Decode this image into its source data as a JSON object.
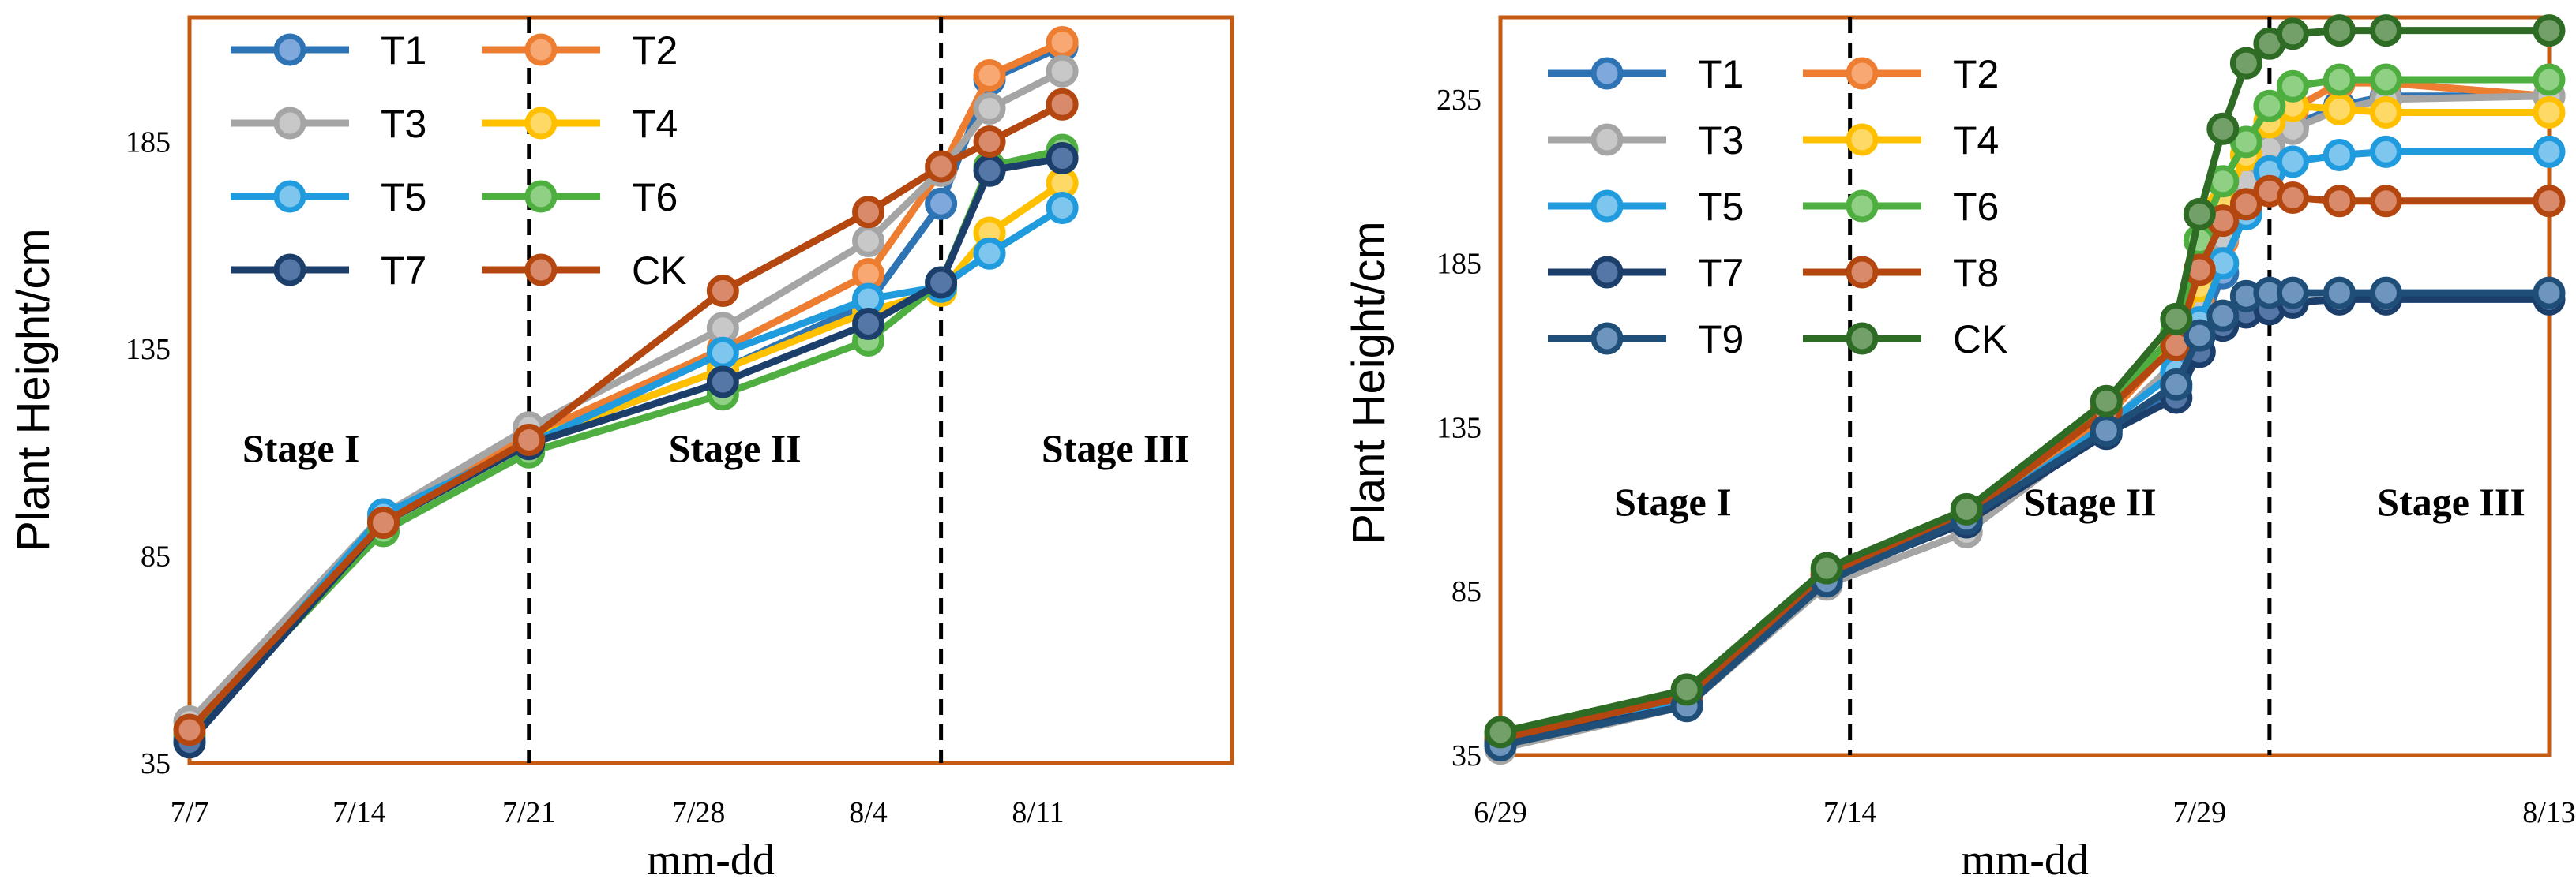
{
  "chart_data": [
    {
      "type": "line",
      "ylabel": "Plant Height/cm",
      "xlabel": "mm-dd",
      "yticks": [
        35,
        85,
        135,
        185
      ],
      "ylim": [
        35,
        215
      ],
      "xlim": [
        0,
        43
      ],
      "xticks": [
        {
          "value": 0,
          "label": "7/7"
        },
        {
          "value": 7,
          "label": "7/14"
        },
        {
          "value": 14,
          "label": "7/21"
        },
        {
          "value": 21,
          "label": "7/28"
        },
        {
          "value": 28,
          "label": "8/4"
        },
        {
          "value": 35,
          "label": "8/11"
        }
      ],
      "dividers": [
        14,
        31
      ],
      "stages": [
        {
          "label": "Stage I",
          "x": 4.6
        },
        {
          "label": "Stage II",
          "x": 22.5
        },
        {
          "label": "Stage III",
          "x": 38.2
        }
      ],
      "x": [
        0,
        8,
        14,
        22,
        28,
        31,
        33,
        36
      ],
      "series": [
        {
          "name": "T1",
          "color": "#2E74B5",
          "fill": "#7FA9DC",
          "values": [
            40,
            94,
            113,
            130,
            146,
            170,
            200,
            208
          ]
        },
        {
          "name": "T2",
          "color": "#ED7D31",
          "fill": "#F7A873",
          "values": [
            43,
            94,
            114,
            135,
            153,
            178,
            201,
            209
          ]
        },
        {
          "name": "T3",
          "color": "#A5A5A5",
          "fill": "#C8C8C8",
          "values": [
            45,
            95,
            116,
            140,
            161,
            178,
            193,
            202
          ]
        },
        {
          "name": "T4",
          "color": "#FFC000",
          "fill": "#FFD966",
          "values": [
            41,
            93,
            113,
            130,
            144,
            149,
            163,
            175
          ]
        },
        {
          "name": "T5",
          "color": "#1F9BDE",
          "fill": "#7FC6EE",
          "values": [
            41,
            95,
            112,
            134,
            147,
            150,
            158,
            169
          ]
        },
        {
          "name": "T6",
          "color": "#4EAF40",
          "fill": "#8FD084",
          "values": [
            42,
            91,
            110,
            124,
            137,
            151,
            179,
            183
          ]
        },
        {
          "name": "T7",
          "color": "#1B3E6B",
          "fill": "#5577A8",
          "values": [
            40,
            93,
            112,
            127,
            141,
            151,
            178,
            181
          ]
        },
        {
          "name": "CK",
          "color": "#B4470F",
          "fill": "#D98A6A",
          "values": [
            43,
            93,
            113,
            149,
            168,
            179,
            185,
            194
          ]
        }
      ]
    },
    {
      "type": "line",
      "ylabel": "Plant Height/cm",
      "xlabel": "mm-dd",
      "yticks": [
        35,
        85,
        135,
        185,
        235
      ],
      "ylim": [
        35,
        260
      ],
      "xlim": [
        0,
        45
      ],
      "xticks": [
        {
          "value": 0,
          "label": "6/29"
        },
        {
          "value": 15,
          "label": "7/14"
        },
        {
          "value": 30,
          "label": "7/29"
        },
        {
          "value": 45,
          "label": "8/13"
        }
      ],
      "dividers": [
        15,
        33
      ],
      "stages": [
        {
          "label": "Stage I",
          "x": 7.4
        },
        {
          "label": "Stage II",
          "x": 25.3
        },
        {
          "label": "Stage III",
          "x": 40.8
        }
      ],
      "x": [
        0,
        8,
        14,
        20,
        26,
        29,
        30,
        31,
        32,
        33,
        34,
        36,
        38,
        45
      ],
      "series": [
        {
          "name": "T1",
          "color": "#2E74B5",
          "fill": "#7FA9DC",
          "values": [
            38,
            51,
            88,
            107,
            134,
            147,
            163,
            182,
            202,
            218,
            227,
            233,
            236,
            236
          ]
        },
        {
          "name": "T2",
          "color": "#ED7D31",
          "fill": "#F7A873",
          "values": [
            39,
            52,
            89,
            106,
            138,
            161,
            172,
            192,
            208,
            224,
            232,
            240,
            240,
            236
          ]
        },
        {
          "name": "T3",
          "color": "#A5A5A5",
          "fill": "#C8C8C8",
          "values": [
            37,
            50,
            87,
            103,
            135,
            155,
            170,
            193,
            210,
            220,
            226,
            232,
            235,
            236
          ]
        },
        {
          "name": "T4",
          "color": "#FFC000",
          "fill": "#FFD966",
          "values": [
            41,
            53,
            90,
            108,
            140,
            163,
            178,
            203,
            218,
            228,
            233,
            232,
            231,
            231
          ]
        },
        {
          "name": "T5",
          "color": "#1F9BDE",
          "fill": "#7FC6EE",
          "values": [
            39,
            52,
            89,
            106,
            136,
            152,
            167,
            185,
            200,
            213,
            216,
            218,
            219,
            219
          ]
        },
        {
          "name": "T6",
          "color": "#4EAF40",
          "fill": "#8FD084",
          "values": [
            41,
            54,
            91,
            109,
            141,
            164,
            192,
            210,
            222,
            233,
            239,
            241,
            241,
            241
          ]
        },
        {
          "name": "T7",
          "color": "#1B3E6B",
          "fill": "#5577A8",
          "values": [
            39,
            50,
            89,
            106,
            133,
            144,
            158,
            166,
            170,
            171,
            173,
            174,
            174,
            174
          ]
        },
        {
          "name": "T8",
          "color": "#B4470F",
          "fill": "#D98A6A",
          "values": [
            40,
            53,
            90,
            108,
            140,
            160,
            183,
            198,
            203,
            207,
            205,
            204,
            204,
            204
          ]
        },
        {
          "name": "T9",
          "color": "#1F4E79",
          "fill": "#6E95BD",
          "values": [
            38,
            50,
            88,
            107,
            134,
            148,
            163,
            169,
            175,
            176,
            176,
            176,
            176,
            176
          ]
        },
        {
          "name": "CK",
          "color": "#2E6B24",
          "fill": "#73A068",
          "values": [
            42,
            55,
            92,
            110,
            143,
            168,
            200,
            226,
            246,
            252,
            255,
            256,
            256,
            256
          ]
        }
      ]
    }
  ]
}
